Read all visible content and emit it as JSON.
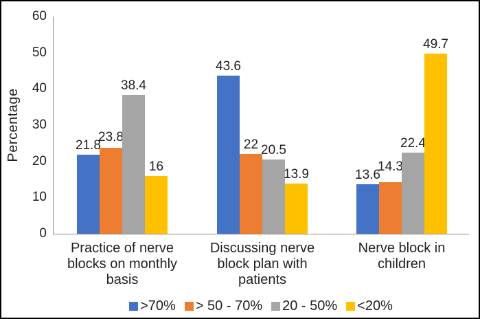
{
  "figure": {
    "background": "#FFFFFF",
    "border_color": "#000000",
    "text_color": "#1F1F1F",
    "axis_line_color": "#8C8C8C"
  },
  "chart_data": {
    "type": "bar",
    "title": "",
    "xlabel": "",
    "ylabel": "Percentage",
    "ylim": [
      0,
      60
    ],
    "yticks": [
      0,
      10,
      20,
      30,
      40,
      50,
      60
    ],
    "grid": false,
    "legend_position": "bottom",
    "bar_value_labels_shown": true,
    "categories": [
      "Practice of nerve blocks on monthly basis",
      "Discussing nerve block plan with patients",
      "Nerve block in children"
    ],
    "series": [
      {
        "name": ">70%",
        "color": "#4472C4",
        "values": [
          21.8,
          43.6,
          13.6
        ]
      },
      {
        "name": "> 50 - 70%",
        "color": "#ED7D31",
        "values": [
          23.8,
          22,
          14.3
        ]
      },
      {
        "name": "20 - 50%",
        "color": "#A5A5A5",
        "values": [
          38.4,
          20.5,
          22.4
        ]
      },
      {
        "name": "<20%",
        "color": "#FFC000",
        "values": [
          16,
          13.9,
          49.7
        ]
      }
    ]
  }
}
